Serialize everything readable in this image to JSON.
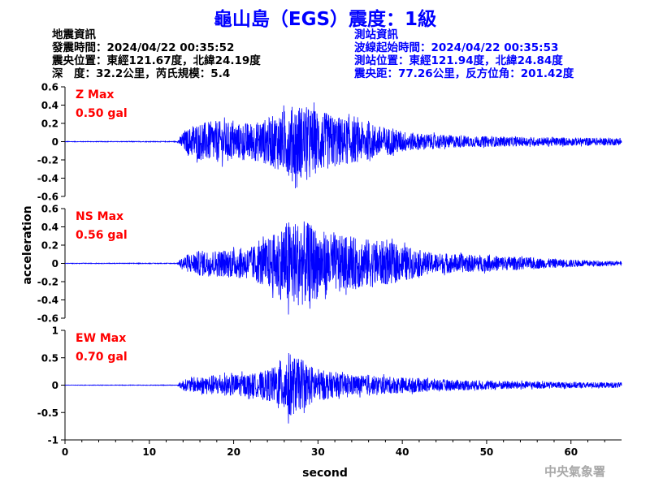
{
  "title": "龜山島（EGS）震度：1級",
  "quake_info": {
    "heading": "地震資訊",
    "origin_time": "發震時間：2024/04/22 00:35:52",
    "epicenter": "震央位置：東經121.67度，北緯24.19度",
    "depth_magnitude": "深　度：32.2公里，芮氏規模：5.4"
  },
  "station_info": {
    "heading": "測站資訊",
    "wave_start": "波線起始時間：2024/04/22 00:35:53",
    "station_location": "測站位置：東經121.94度，北緯24.84度",
    "distance_azimuth": "震央距：77.26公里，反方位角：201.42度"
  },
  "watermark": "中央氣象署",
  "colors": {
    "trace": "#0000ff",
    "max_label": "#ff0000",
    "title": "#0000ff"
  },
  "chart_data": {
    "type": "line",
    "xlabel": "second",
    "ylabel": "acceleration",
    "xlim": [
      0,
      66
    ],
    "xticks": [
      "0",
      "10",
      "20",
      "30",
      "40",
      "50",
      "60"
    ],
    "grid": false,
    "panels": [
      {
        "component": "Z",
        "max_label": "Z Max",
        "max_value": "0.50 gal",
        "ylim": [
          -0.6,
          0.6
        ],
        "yticks": [
          "0.6",
          "0.4",
          "0.2",
          "0",
          "-0.2",
          "-0.4",
          "-0.6"
        ],
        "peak": 0.5,
        "envelope": [
          [
            0,
            0.003
          ],
          [
            13.3,
            0.004
          ],
          [
            14,
            0.1
          ],
          [
            15.5,
            0.2
          ],
          [
            18,
            0.23
          ],
          [
            20.5,
            0.2
          ],
          [
            23,
            0.22
          ],
          [
            25,
            0.3
          ],
          [
            27.5,
            0.42
          ],
          [
            29.5,
            0.36
          ],
          [
            31.5,
            0.3
          ],
          [
            33.5,
            0.25
          ],
          [
            36,
            0.2
          ],
          [
            38.5,
            0.15
          ],
          [
            41,
            0.1
          ],
          [
            44,
            0.08
          ],
          [
            48,
            0.06
          ],
          [
            55,
            0.05
          ],
          [
            66,
            0.04
          ]
        ]
      },
      {
        "component": "NS",
        "max_label": "NS Max",
        "max_value": "0.56 gal",
        "ylim": [
          -0.6,
          0.6
        ],
        "yticks": [
          "0.6",
          "0.4",
          "0.2",
          "0",
          "-0.2",
          "-0.4",
          "-0.6"
        ],
        "peak": 0.56,
        "envelope": [
          [
            0,
            0.003
          ],
          [
            13.3,
            0.004
          ],
          [
            14,
            0.08
          ],
          [
            16,
            0.14
          ],
          [
            19,
            0.15
          ],
          [
            22,
            0.18
          ],
          [
            24.5,
            0.3
          ],
          [
            26.5,
            0.48
          ],
          [
            28.5,
            0.46
          ],
          [
            30.5,
            0.36
          ],
          [
            32.5,
            0.3
          ],
          [
            35,
            0.28
          ],
          [
            37.5,
            0.25
          ],
          [
            40,
            0.2
          ],
          [
            43,
            0.12
          ],
          [
            47,
            0.1
          ],
          [
            52,
            0.08
          ],
          [
            58,
            0.05
          ],
          [
            66,
            0.02
          ]
        ]
      },
      {
        "component": "EW",
        "max_label": "EW Max",
        "max_value": "0.70 gal",
        "ylim": [
          -1,
          1
        ],
        "yticks": [
          "1",
          "0.5",
          "0",
          "-0.5",
          "-1"
        ],
        "peak": 0.7,
        "envelope": [
          [
            0,
            0.004
          ],
          [
            13.3,
            0.005
          ],
          [
            14,
            0.1
          ],
          [
            17,
            0.18
          ],
          [
            20,
            0.2
          ],
          [
            23,
            0.22
          ],
          [
            25,
            0.35
          ],
          [
            26.5,
            0.6
          ],
          [
            28,
            0.45
          ],
          [
            30,
            0.3
          ],
          [
            32,
            0.22
          ],
          [
            35,
            0.18
          ],
          [
            38,
            0.16
          ],
          [
            42,
            0.13
          ],
          [
            46,
            0.1
          ],
          [
            52,
            0.08
          ],
          [
            58,
            0.06
          ],
          [
            66,
            0.05
          ]
        ]
      }
    ]
  }
}
